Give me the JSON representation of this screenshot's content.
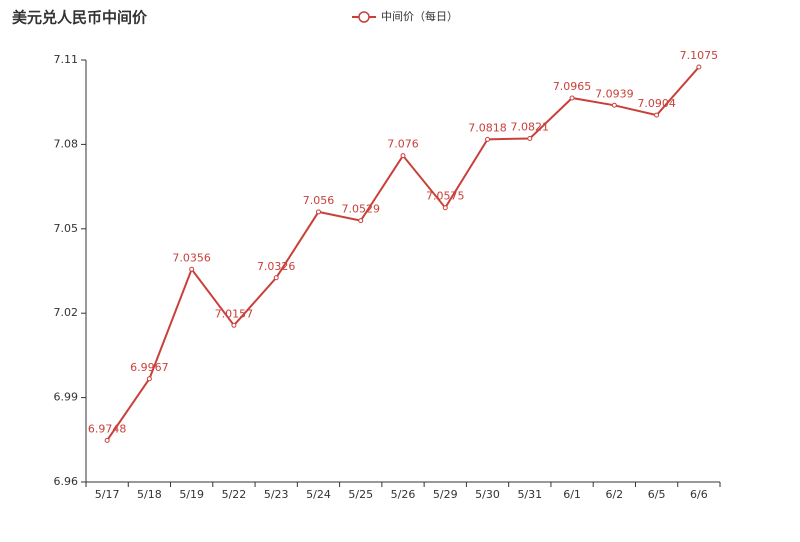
{
  "chart_data": {
    "type": "line",
    "title": "美元兑人民币中间价",
    "categories": [
      "5/17",
      "5/18",
      "5/19",
      "5/22",
      "5/23",
      "5/24",
      "5/25",
      "5/26",
      "5/29",
      "5/30",
      "5/31",
      "6/1",
      "6/2",
      "6/5",
      "6/6"
    ],
    "series": [
      {
        "name": "中间价（每日）",
        "color": "#c9403a",
        "values": [
          6.9748,
          6.9967,
          7.0356,
          7.0157,
          7.0326,
          7.056,
          7.0529,
          7.076,
          7.0575,
          7.0818,
          7.0821,
          7.0965,
          7.0939,
          7.0904,
          7.1075
        ]
      }
    ],
    "ylim": [
      6.96,
      7.11
    ],
    "yticks": [
      6.96,
      6.99,
      7.02,
      7.05,
      7.08,
      7.11
    ],
    "grid": false
  }
}
